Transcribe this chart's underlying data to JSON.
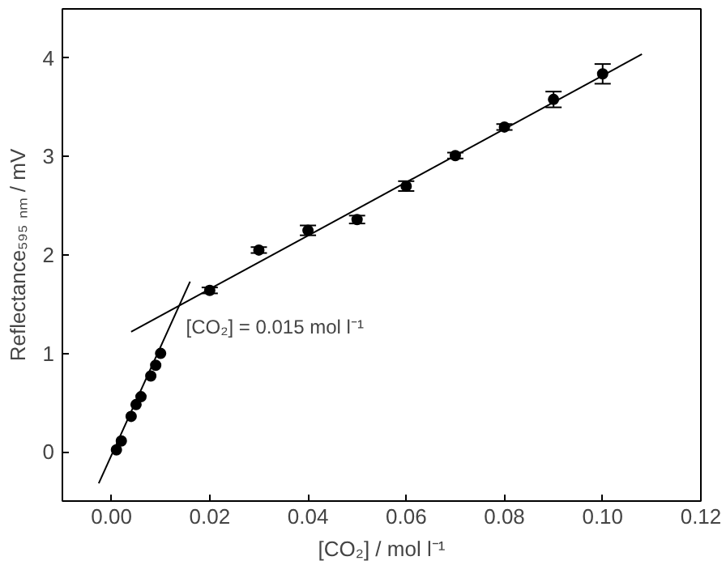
{
  "chart_data": {
    "type": "scatter",
    "xlabel": "[CO₂] / mol l⁻¹",
    "ylabel": "Reflectance₅₉₅ ₙₘ / mV",
    "xlim": [
      -0.01,
      0.12
    ],
    "ylim": [
      -0.5,
      4.5
    ],
    "xticks": [
      {
        "value": 0,
        "label": "0.00"
      },
      {
        "value": 0.02,
        "label": "0.02"
      },
      {
        "value": 0.04,
        "label": "0.04"
      },
      {
        "value": 0.06,
        "label": "0.06"
      },
      {
        "value": 0.08,
        "label": "0.08"
      },
      {
        "value": 0.1,
        "label": "0.10"
      },
      {
        "value": 0.12,
        "label": "0.12"
      }
    ],
    "yticks": [
      0,
      1,
      2,
      3,
      4
    ],
    "grid": false,
    "series": [
      {
        "marker": "circle",
        "color": "#000000",
        "x": [
          0.001,
          0.002,
          0.004,
          0.005,
          0.006,
          0.008,
          0.009,
          0.01,
          0.02,
          0.03,
          0.04,
          0.05,
          0.06,
          0.07,
          0.08,
          0.09,
          0.1
        ],
        "values": [
          0.02,
          0.11,
          0.36,
          0.48,
          0.56,
          0.77,
          0.88,
          1.0,
          1.64,
          2.05,
          2.25,
          2.36,
          2.7,
          3.01,
          3.3,
          3.58,
          3.84
        ],
        "errors": [
          null,
          null,
          null,
          null,
          null,
          null,
          null,
          null,
          0.03,
          0.03,
          0.05,
          0.04,
          0.05,
          0.03,
          0.03,
          0.08,
          0.1
        ],
        "xerrors": [
          0.001,
          0.001,
          0.001,
          0.001,
          0.001,
          0.001,
          0.001,
          0.001,
          0.001,
          0.001,
          0.001,
          0.001,
          0.001,
          0.001,
          0.001,
          0.001,
          0.001
        ]
      },
      {
        "type": "line",
        "color": "#000000",
        "x": [
          0.004,
          0.108
        ],
        "values": [
          1.22,
          4.04
        ]
      },
      {
        "type": "line",
        "color": "#000000",
        "x": [
          -0.0026,
          0.016
        ],
        "values": [
          -0.32,
          1.73
        ]
      }
    ],
    "annotations": [
      {
        "text": "[CO₂] = 0.015 mol l⁻¹",
        "x": 0.0145,
        "y": 1.45
      }
    ]
  }
}
